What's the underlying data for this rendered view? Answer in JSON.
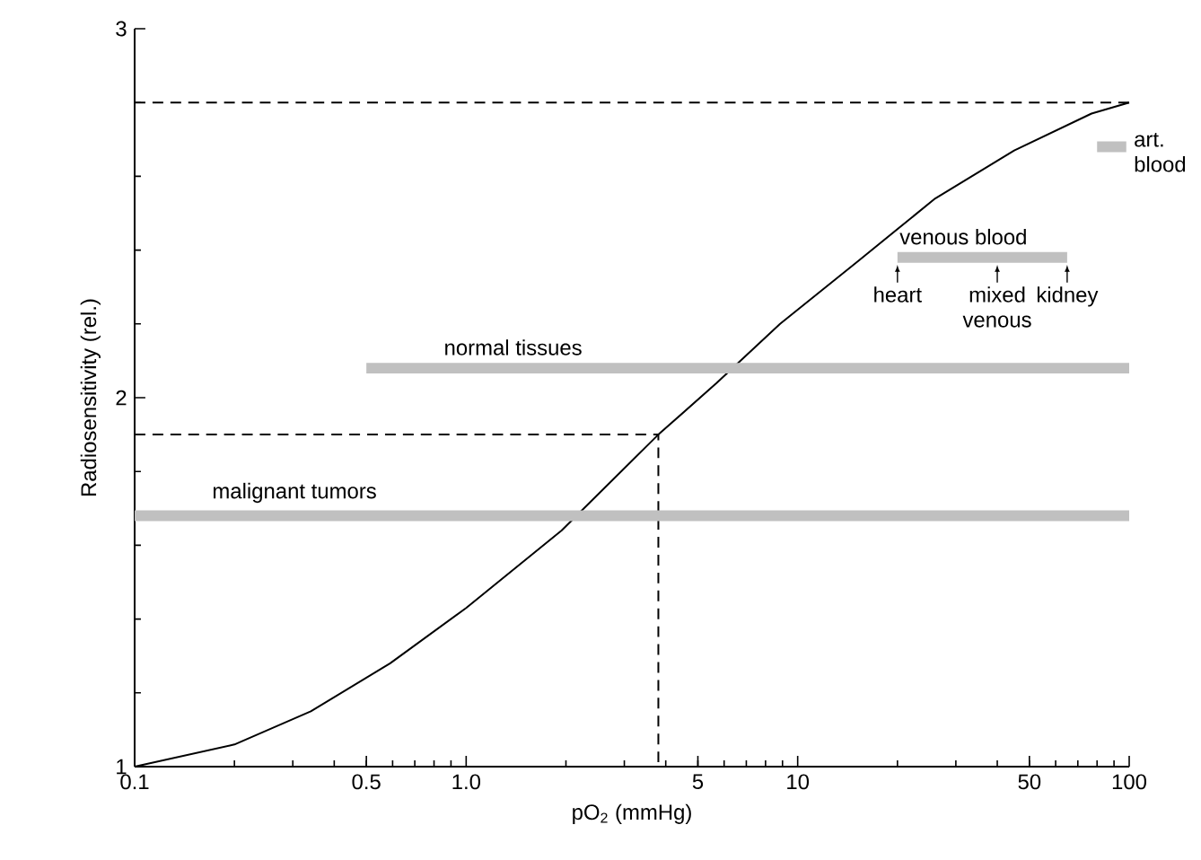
{
  "chart_data": {
    "type": "line",
    "xlabel": "pO$_{2}$ (mmHg)",
    "ylabel": "Radiosensitivity (rel.)",
    "log": "x",
    "marker": "none",
    "xlim": [
      0.1,
      100
    ],
    "ylim": [
      1,
      3
    ],
    "xticks": [
      0.1,
      0.5,
      {
        "value": 1,
        "label": "1.0"
      },
      5,
      10,
      50,
      100
    ],
    "yticks": [
      1,
      2,
      3
    ],
    "series": [
      {
        "type": "line",
        "color": "#000000",
        "line_style": "solid",
        "x": [
          0.1,
          0.2,
          0.34,
          0.59,
          1.0,
          1.94,
          3.8,
          5.7,
          8.85,
          15.2,
          26,
          45,
          77,
          100
        ],
        "values": [
          1.0,
          1.06,
          1.15,
          1.28,
          1.43,
          1.64,
          1.9,
          2.04,
          2.2,
          2.37,
          2.54,
          2.67,
          2.77,
          2.8
        ]
      },
      {
        "type": "line",
        "color": "#000000",
        "line_style": "dashed",
        "x": [
          0.1,
          100
        ],
        "values": [
          2.8,
          2.8
        ]
      },
      {
        "type": "line",
        "color": "#000000",
        "line_style": "dashed",
        "x": [
          0.1,
          3.8,
          3.8
        ],
        "values": [
          1.9,
          1.9,
          1.0
        ]
      },
      {
        "type": "line",
        "name": "malignant tumors",
        "color": "#c0c0c0",
        "x": [
          0.1,
          100
        ],
        "values": [
          1.68,
          1.68
        ]
      },
      {
        "type": "line",
        "name": "normal tissues",
        "color": "#c0c0c0",
        "x": [
          0.5,
          100
        ],
        "values": [
          2.08,
          2.08
        ]
      },
      {
        "type": "line",
        "name": "venous blood",
        "color": "#c0c0c0",
        "x": [
          20,
          65
        ],
        "values": [
          2.38,
          2.38
        ]
      },
      {
        "type": "line",
        "name": "art. blood",
        "color": "#c0c0c0",
        "x": [
          80,
          98
        ],
        "values": [
          2.68,
          2.68
        ]
      }
    ],
    "annotations": [
      {
        "text": "heart",
        "x": 20,
        "y": 2.38
      },
      {
        "text": "mixed venous",
        "x": 40,
        "y": 2.38
      },
      {
        "text": "kidney",
        "x": 65,
        "y": 2.38
      }
    ]
  }
}
